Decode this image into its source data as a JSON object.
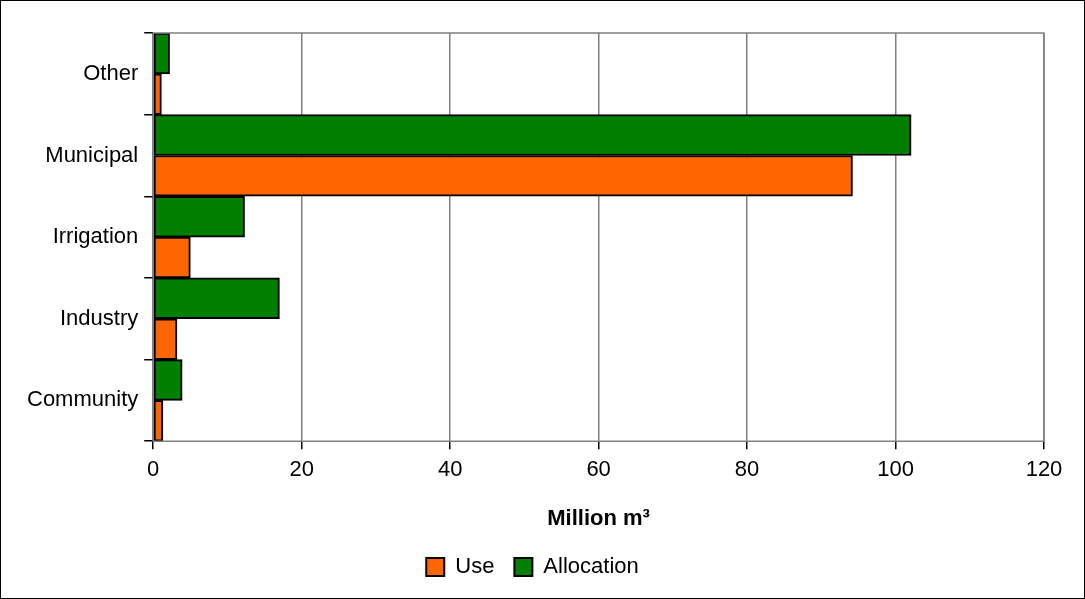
{
  "chart_data": {
    "type": "bar",
    "orientation": "horizontal",
    "categories": [
      "Other",
      "Municipal",
      "Irrigation",
      "Industry",
      "Community"
    ],
    "series": [
      {
        "name": "Use",
        "color": "#ff6600",
        "values": [
          1.1,
          94.2,
          5.0,
          3.2,
          1.3
        ]
      },
      {
        "name": "Allocation",
        "color": "#007f00",
        "values": [
          2.2,
          102.1,
          12.3,
          17.0,
          3.9
        ]
      }
    ],
    "xlabel": "Million m³",
    "xlim": [
      0,
      120
    ],
    "xticks": [
      0,
      20,
      40,
      60,
      80,
      100,
      120
    ],
    "grid": "x",
    "legend": "bottom"
  }
}
